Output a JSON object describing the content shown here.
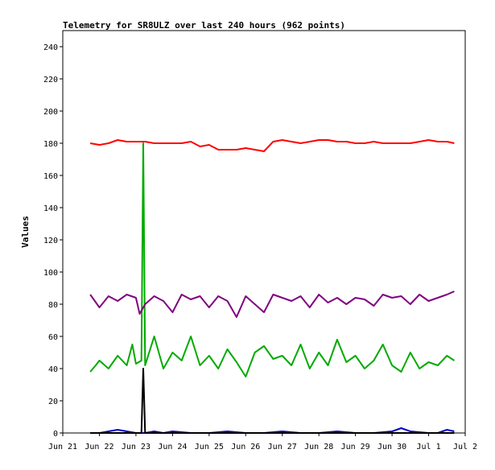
{
  "chart_data": {
    "type": "line",
    "title": "Telemetry for SR8ULZ over last 240 hours (962 points)",
    "xlabel": "",
    "ylabel": "Values",
    "ylim": [
      0,
      250
    ],
    "xlim": [
      "Jun 21",
      "Jul 2"
    ],
    "y_ticks": [
      0,
      20,
      40,
      60,
      80,
      100,
      120,
      140,
      160,
      180,
      200,
      220,
      240
    ],
    "x_ticks": [
      "Jun 21",
      "Jun 22",
      "Jun 23",
      "Jun 24",
      "Jun 25",
      "Jun 26",
      "Jun 27",
      "Jun 28",
      "Jun 29",
      "Jun 30",
      "Jul 1",
      "Jul 2"
    ],
    "grid": false,
    "legend": "none",
    "series": [
      {
        "color": "#ff0000",
        "x": [
          0.75,
          1.0,
          1.25,
          1.5,
          1.75,
          2.0,
          2.25,
          2.5,
          2.75,
          3.0,
          3.25,
          3.5,
          3.75,
          4.0,
          4.25,
          4.5,
          4.75,
          5.0,
          5.25,
          5.5,
          5.75,
          6.0,
          6.25,
          6.5,
          6.75,
          7.0,
          7.25,
          7.5,
          7.75,
          8.0,
          8.25,
          8.5,
          8.75,
          9.0,
          9.25,
          9.5,
          9.75,
          10.0,
          10.25,
          10.5,
          10.7
        ],
        "y": [
          180,
          179,
          180,
          182,
          181,
          181,
          181,
          180,
          180,
          180,
          180,
          181,
          178,
          179,
          176,
          176,
          176,
          177,
          176,
          175,
          181,
          182,
          181,
          180,
          181,
          182,
          182,
          181,
          181,
          180,
          180,
          181,
          180,
          180,
          180,
          180,
          181,
          182,
          181,
          181,
          180
        ]
      },
      {
        "color": "#00aa00",
        "x": [
          0.75,
          0.9,
          1.0,
          1.25,
          1.5,
          1.75,
          1.9,
          2.0,
          2.15,
          2.2,
          2.25,
          2.5,
          2.75,
          3.0,
          3.25,
          3.5,
          3.75,
          4.0,
          4.25,
          4.5,
          4.75,
          5.0,
          5.25,
          5.5,
          5.75,
          6.0,
          6.25,
          6.5,
          6.75,
          7.0,
          7.25,
          7.5,
          7.75,
          8.0,
          8.25,
          8.5,
          8.75,
          9.0,
          9.25,
          9.5,
          9.75,
          10.0,
          10.25,
          10.5,
          10.7
        ],
        "y": [
          38,
          42,
          45,
          40,
          48,
          42,
          55,
          43,
          45,
          180,
          42,
          60,
          40,
          50,
          45,
          60,
          42,
          48,
          40,
          52,
          44,
          35,
          50,
          54,
          46,
          48,
          42,
          55,
          40,
          50,
          42,
          58,
          44,
          48,
          40,
          45,
          55,
          42,
          38,
          50,
          40,
          44,
          42,
          48,
          45
        ]
      },
      {
        "color": "#800080",
        "x": [
          0.75,
          1.0,
          1.25,
          1.5,
          1.75,
          2.0,
          2.1,
          2.25,
          2.5,
          2.75,
          3.0,
          3.25,
          3.5,
          3.75,
          4.0,
          4.25,
          4.5,
          4.75,
          5.0,
          5.25,
          5.5,
          5.75,
          6.0,
          6.25,
          6.5,
          6.75,
          7.0,
          7.25,
          7.5,
          7.75,
          8.0,
          8.25,
          8.5,
          8.75,
          9.0,
          9.25,
          9.5,
          9.75,
          10.0,
          10.25,
          10.5,
          10.7
        ],
        "y": [
          86,
          78,
          85,
          82,
          86,
          84,
          74,
          80,
          85,
          82,
          75,
          86,
          83,
          85,
          78,
          85,
          82,
          72,
          85,
          80,
          75,
          86,
          84,
          82,
          85,
          78,
          86,
          81,
          84,
          80,
          84,
          83,
          79,
          86,
          84,
          85,
          80,
          86,
          82,
          84,
          86,
          88
        ]
      },
      {
        "color": "#0000cc",
        "x": [
          0.75,
          1.0,
          1.25,
          1.5,
          1.75,
          2.0,
          2.25,
          2.5,
          2.75,
          3.0,
          3.5,
          4.0,
          4.5,
          5.0,
          5.5,
          6.0,
          6.5,
          7.0,
          7.5,
          8.0,
          8.5,
          9.0,
          9.25,
          9.5,
          10.0,
          10.25,
          10.5,
          10.7
        ],
        "y": [
          0,
          0,
          1,
          2,
          1,
          0,
          0,
          1,
          0,
          1,
          0,
          0,
          1,
          0,
          0,
          1,
          0,
          0,
          1,
          0,
          0,
          1,
          3,
          1,
          0,
          0,
          2,
          1
        ]
      },
      {
        "color": "#000000",
        "x": [
          0.75,
          2.15,
          2.2,
          2.25,
          10.7
        ],
        "y": [
          0,
          0,
          40,
          0,
          0
        ]
      }
    ]
  }
}
